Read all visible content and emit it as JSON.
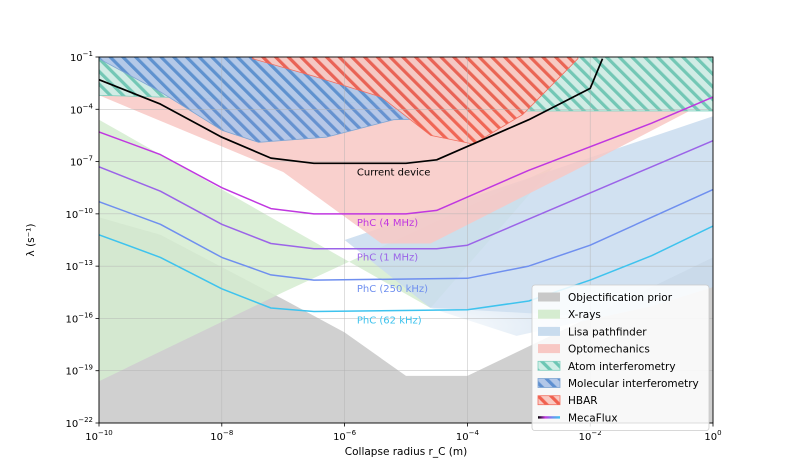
{
  "chart_data": {
    "type": "line",
    "xlabel": "Collapse radius r_C (m)",
    "ylabel": "λ (s⁻¹)",
    "xscale": "log",
    "yscale": "log",
    "xlim_log10": [
      -10,
      0
    ],
    "ylim_log10": [
      -22,
      -1
    ],
    "x_ticks": [
      {
        "exp": -10,
        "label": "−10"
      },
      {
        "exp": -8,
        "label": "−8"
      },
      {
        "exp": -6,
        "label": "−6"
      },
      {
        "exp": -4,
        "label": "−4"
      },
      {
        "exp": -2,
        "label": "−2"
      },
      {
        "exp": 0,
        "label": "0"
      }
    ],
    "y_ticks": [
      {
        "exp": -22,
        "label": "−22"
      },
      {
        "exp": -19,
        "label": "−19"
      },
      {
        "exp": -16,
        "label": "−16"
      },
      {
        "exp": -13,
        "label": "−13"
      },
      {
        "exp": -10,
        "label": "−10"
      },
      {
        "exp": -7,
        "label": "−7"
      },
      {
        "exp": -4,
        "label": "−4"
      },
      {
        "exp": -1,
        "label": "−1"
      }
    ],
    "grid": true,
    "legend_position": "lower-right",
    "regions": [
      {
        "name": "Objectification prior",
        "color": "#c8c8c8",
        "boundary_log10": [
          [
            -10,
            -10.2
          ],
          [
            -9,
            -11.2
          ],
          [
            -7,
            -14.9
          ],
          [
            -6,
            -16.8
          ],
          [
            -5,
            -19.3
          ],
          [
            -4,
            -19.3
          ],
          [
            -2,
            -15.9
          ],
          [
            -1,
            -14.2
          ],
          [
            0,
            -12.5
          ]
        ]
      },
      {
        "name": "X-rays",
        "color": "#d5ecd0",
        "lower_log10": [
          [
            -10,
            -19.6
          ],
          [
            -7,
            -14.5
          ],
          [
            -4,
            -9.6
          ],
          [
            -2.6,
            -7.3
          ]
        ],
        "upper_log10": [
          [
            -10,
            -4.6
          ],
          [
            -4.6,
            -15.4
          ]
        ]
      },
      {
        "name": "Lisa pathfinder",
        "color": "#c9dcee",
        "lower_log10": [
          [
            -6,
            -11.5
          ],
          [
            -4.6,
            -15.4
          ],
          [
            -3.2,
            -17
          ],
          [
            -1,
            -15.3
          ],
          [
            0,
            -14.2
          ]
        ],
        "upper_log10": [
          [
            -6,
            -11.5
          ],
          [
            0,
            -4.4
          ]
        ]
      },
      {
        "name": "Optomechanics",
        "color": "#f8c8c4",
        "lower_log10": [
          [
            -10,
            -3.2
          ],
          [
            -7,
            -7.6
          ],
          [
            -5.4,
            -11.7
          ],
          [
            -4.6,
            -11.7
          ],
          [
            -2.3,
            -7.6
          ],
          [
            0,
            -3.4
          ]
        ]
      },
      {
        "name": "Atom interferometry",
        "color": "#7fcfbf",
        "lower_log10": [
          [
            -10,
            -3.2
          ],
          [
            -4.1,
            -3.8
          ],
          [
            -4,
            -4.1
          ],
          [
            0,
            -4.1
          ]
        ]
      },
      {
        "name": "Molecular interferometry",
        "color": "#7fa6d3",
        "lower_log10": [
          [
            -10,
            -1.1
          ],
          [
            -9,
            -3
          ],
          [
            -8,
            -5.2
          ],
          [
            -7.4,
            -5.9
          ],
          [
            -6.3,
            -5.6
          ],
          [
            -5.2,
            -4.6
          ],
          [
            -4,
            -4.5
          ]
        ]
      },
      {
        "name": "HBAR",
        "color": "#f26e5f",
        "lower_log10": [
          [
            -7.5,
            -1.1
          ],
          [
            -6.5,
            -2.1
          ],
          [
            -5.4,
            -3.3
          ],
          [
            -4.6,
            -5.5
          ],
          [
            -3.9,
            -6
          ],
          [
            -3.1,
            -4.3
          ],
          [
            -2.2,
            -1.1
          ]
        ]
      }
    ],
    "series": [
      {
        "name": "Current device",
        "color": "#000000",
        "points_log10": [
          [
            -10,
            -2.3
          ],
          [
            -9,
            -3.7
          ],
          [
            -8,
            -5.6
          ],
          [
            -7.2,
            -6.8
          ],
          [
            -6.5,
            -7.1
          ],
          [
            -5,
            -7.1
          ],
          [
            -4.5,
            -6.9
          ],
          [
            -3,
            -4.6
          ],
          [
            -2,
            -2.8
          ],
          [
            -1.8,
            -1.1
          ]
        ]
      },
      {
        "name": "PhC (4 MHz)",
        "color": "#c037e0",
        "points_log10": [
          [
            -10,
            -5.3
          ],
          [
            -9,
            -6.6
          ],
          [
            -8,
            -8.5
          ],
          [
            -7.2,
            -9.7
          ],
          [
            -6.5,
            -10
          ],
          [
            -5,
            -10
          ],
          [
            -4.5,
            -9.8
          ],
          [
            -3,
            -7.5
          ],
          [
            -1,
            -4.8
          ],
          [
            0,
            -3.3
          ]
        ]
      },
      {
        "name": "PhC (1 MHz)",
        "color": "#9b64e8",
        "points_log10": [
          [
            -10,
            -7.3
          ],
          [
            -9,
            -8.7
          ],
          [
            -8,
            -10.6
          ],
          [
            -7.2,
            -11.7
          ],
          [
            -6.5,
            -12
          ],
          [
            -4.5,
            -12
          ],
          [
            -4,
            -11.8
          ],
          [
            -3,
            -10.3
          ],
          [
            -1,
            -7.3
          ],
          [
            0,
            -5.8
          ]
        ]
      },
      {
        "name": "PhC (250 kHz)",
        "color": "#6f8fef",
        "points_log10": [
          [
            -10,
            -9.3
          ],
          [
            -9,
            -10.6
          ],
          [
            -8,
            -12.5
          ],
          [
            -7.2,
            -13.5
          ],
          [
            -6.5,
            -13.8
          ],
          [
            -4,
            -13.7
          ],
          [
            -3,
            -13
          ],
          [
            -2,
            -11.8
          ],
          [
            -1,
            -10.2
          ],
          [
            0,
            -8.6
          ]
        ]
      },
      {
        "name": "PhC (62 kHz)",
        "color": "#3ec3ee",
        "points_log10": [
          [
            -10,
            -11.2
          ],
          [
            -9,
            -12.5
          ],
          [
            -8,
            -14.3
          ],
          [
            -7.2,
            -15.4
          ],
          [
            -6.5,
            -15.6
          ],
          [
            -4,
            -15.5
          ],
          [
            -3,
            -15
          ],
          [
            -2,
            -13.8
          ],
          [
            -1,
            -12.4
          ],
          [
            0,
            -10.7
          ]
        ]
      }
    ],
    "legend": [
      {
        "label": "Objectification prior",
        "style": "fill",
        "color": "#c8c8c8"
      },
      {
        "label": "X-rays",
        "style": "fill",
        "color": "#d5ecd0"
      },
      {
        "label": "Lisa pathfinder",
        "style": "fill",
        "color": "#c9dcee"
      },
      {
        "label": "Optomechanics",
        "style": "fill",
        "color": "#f8c8c4"
      },
      {
        "label": "Atom interferometry",
        "style": "hatch",
        "color": "#7fcfbf"
      },
      {
        "label": "Molecular interferometry",
        "style": "hatch",
        "color": "#7fa6d3"
      },
      {
        "label": "HBAR",
        "style": "hatch",
        "color": "#f26e5f"
      },
      {
        "label": "MecaFlux",
        "style": "gradient-line",
        "colors": [
          "#000000",
          "#c037e0",
          "#6f8fef",
          "#3ec3ee"
        ]
      }
    ]
  }
}
